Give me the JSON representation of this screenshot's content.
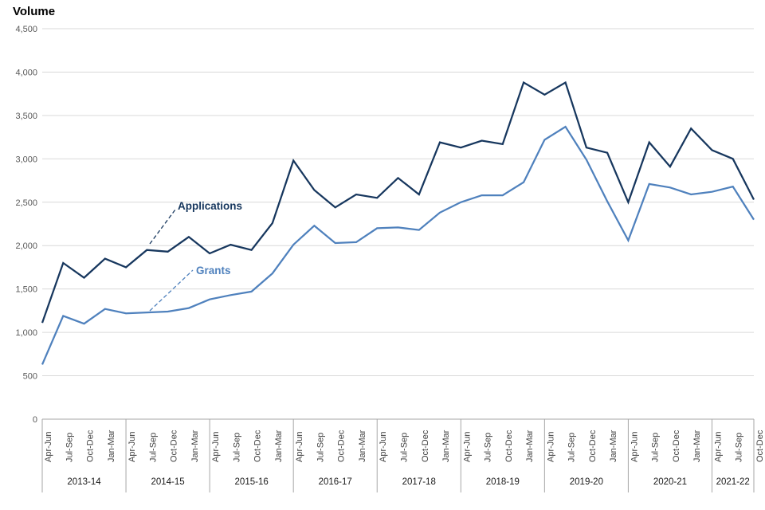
{
  "chart_data": {
    "type": "line",
    "title": "Volume",
    "xlabel": "",
    "ylabel": "Volume",
    "ylim": [
      0,
      4500
    ],
    "ytick_step": 500,
    "ytick_labels": [
      "0",
      "500",
      "1,000",
      "1,500",
      "2,000",
      "2,500",
      "3,000",
      "3,500",
      "4,000",
      "4,500"
    ],
    "grid": "horizontal",
    "legend_position": "inline-annotations",
    "categories": [
      "Apr-Jun",
      "Jul-Sep",
      "Oct-Dec",
      "Jan-Mar",
      "Apr-Jun",
      "Jul-Sep",
      "Oct-Dec",
      "Jan-Mar",
      "Apr-Jun",
      "Jul-Sep",
      "Oct-Dec",
      "Jan-Mar",
      "Apr-Jun",
      "Jul-Sep",
      "Oct-Dec",
      "Jan-Mar",
      "Apr-Jun",
      "Jul-Sep",
      "Oct-Dec",
      "Jan-Mar",
      "Apr-Jun",
      "Jul-Sep",
      "Oct-Dec",
      "Jan-Mar",
      "Apr-Jun",
      "Jul-Sep",
      "Oct-Dec",
      "Jan-Mar",
      "Apr-Jun",
      "Jul-Sep",
      "Oct-Dec",
      "Jan-Mar",
      "Apr-Jun",
      "Jul-Sep",
      "Oct-Dec"
    ],
    "year_groups": [
      {
        "label": "2013-14",
        "quarters": 4
      },
      {
        "label": "2014-15",
        "quarters": 4
      },
      {
        "label": "2015-16",
        "quarters": 4
      },
      {
        "label": "2016-17",
        "quarters": 4
      },
      {
        "label": "2017-18",
        "quarters": 4
      },
      {
        "label": "2018-19",
        "quarters": 4
      },
      {
        "label": "2019-20",
        "quarters": 4
      },
      {
        "label": "2020-21",
        "quarters": 4
      },
      {
        "label": "2021-22",
        "quarters": 3
      }
    ],
    "series": [
      {
        "name": "Applications",
        "color": "#17375E",
        "values": [
          1110,
          1800,
          1630,
          1850,
          1750,
          1950,
          1930,
          2100,
          1910,
          2010,
          1950,
          2260,
          2980,
          2640,
          2440,
          2590,
          2550,
          2780,
          2590,
          3190,
          3130,
          3210,
          3170,
          3880,
          3740,
          3880,
          3130,
          3070,
          2500,
          3190,
          2910,
          3350,
          3100,
          3000,
          2530
        ]
      },
      {
        "name": "Grants",
        "color": "#4F81BD",
        "values": [
          630,
          1190,
          1100,
          1270,
          1220,
          1230,
          1240,
          1280,
          1380,
          1430,
          1470,
          1680,
          2010,
          2230,
          2030,
          2040,
          2200,
          2210,
          2180,
          2380,
          2500,
          2580,
          2580,
          2730,
          3220,
          3370,
          2990,
          2510,
          2060,
          2710,
          2670,
          2590,
          2620,
          2680,
          2300
        ]
      }
    ],
    "annotations": [
      {
        "text": "Applications",
        "color": "#17375E"
      },
      {
        "text": "Grants",
        "color": "#4F81BD"
      }
    ],
    "colors": {
      "gridline": "#D9D9D9",
      "axis": "#A6A6A6",
      "separator": "#A6A6A6",
      "ytick_text": "#595959",
      "quarter_text": "#404040",
      "year_text": "#1A1A1A"
    }
  }
}
